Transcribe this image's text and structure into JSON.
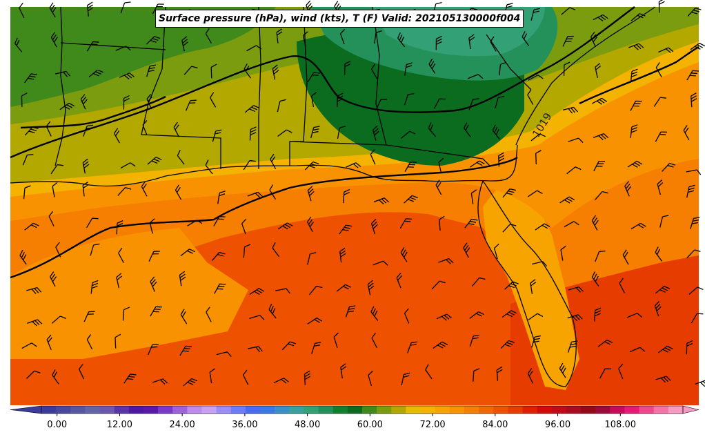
{
  "title": "Surface pressure (hPa), wind (kts), T (F) Valid: 202105130000f004",
  "contour_labels": [
    "1019"
  ],
  "colorbar": {
    "tick_labels": [
      "0.00",
      "12.00",
      "24.00",
      "36.00",
      "48.00",
      "60.00",
      "72.00",
      "84.00",
      "96.00",
      "108.00"
    ],
    "tick_values": [
      0,
      12,
      24,
      36,
      48,
      60,
      72,
      84,
      96,
      108
    ],
    "min": -3,
    "max": 120,
    "step": 3,
    "colors": [
      "#3b3b9a",
      "#48489f",
      "#5656a4",
      "#6464a8",
      "#6d57b0",
      "#5a35a8",
      "#4b1aa0",
      "#5a1aa8",
      "#7a3ac8",
      "#9c63da",
      "#bd8cee",
      "#c8a0f6",
      "#9b8ef8",
      "#6d7cf8",
      "#4a6cf4",
      "#3a7ae4",
      "#3a90c8",
      "#3aa0a0",
      "#33a075",
      "#24915a",
      "#11802d",
      "#0b6b1f",
      "#3f8a1a",
      "#7c9c10",
      "#b3a800",
      "#e6bc00",
      "#f4b300",
      "#f8a400",
      "#f89200",
      "#f67e00",
      "#f26800",
      "#ee5200",
      "#e63c00",
      "#de2000",
      "#d20a0a",
      "#c00a18",
      "#a80a20",
      "#940818",
      "#9a0a3a",
      "#c80a5c",
      "#e81a78",
      "#f0488e",
      "#f672a8",
      "#f89ac4"
    ]
  }
}
